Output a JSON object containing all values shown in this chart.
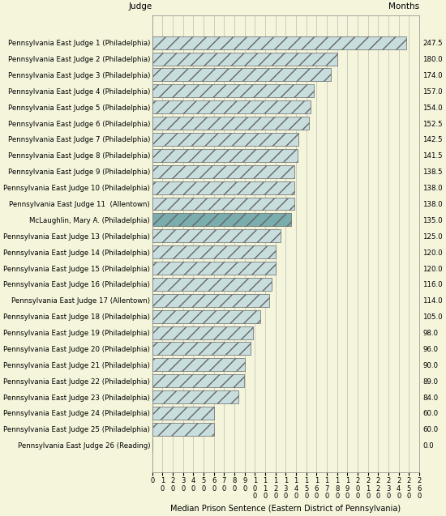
{
  "judges": [
    "Pennsylvania East Judge 1 (Philadelphia)",
    "Pennsylvania East Judge 2 (Philadelphia)",
    "Pennsylvania East Judge 3 (Philadelphia)",
    "Pennsylvania East Judge 4 (Philadelphia)",
    "Pennsylvania East Judge 5 (Philadelphia)",
    "Pennsylvania East Judge 6 (Philadelphia)",
    "Pennsylvania East Judge 7 (Philadelphia)",
    "Pennsylvania East Judge 8 (Philadelphia)",
    "Pennsylvania East Judge 9 (Philadelphia)",
    "Pennsylvania East Judge 10 (Philadelphia)",
    "Pennsylvania East Judge 11  (Allentown)",
    "McLaughlin, Mary A. (Philadelphia)",
    "Pennsylvania East Judge 13 (Philadelphia)",
    "Pennsylvania East Judge 14 (Philadelphia)",
    "Pennsylvania East Judge 15 (Philadelphia)",
    "Pennsylvania East Judge 16 (Philadelphia)",
    "Pennsylvania East Judge 17 (Allentown)",
    "Pennsylvania East Judge 18 (Philadelphia)",
    "Pennsylvania East Judge 19 (Philadelphia)",
    "Pennsylvania East Judge 20 (Philadelphia)",
    "Pennsylvania East Judge 21 (Philadelphia)",
    "Pennsylvania East Judge 22 (Philadelphia)",
    "Pennsylvania East Judge 23 (Philadelphia)",
    "Pennsylvania East Judge 24 (Philadelphia)",
    "Pennsylvania East Judge 25 (Philadelphia)",
    "Pennsylvania East Judge 26 (Reading)"
  ],
  "values": [
    247.5,
    180.0,
    174.0,
    157.0,
    154.0,
    152.5,
    142.5,
    141.5,
    138.5,
    138.0,
    138.0,
    135.0,
    125.0,
    120.0,
    120.0,
    116.0,
    114.0,
    105.0,
    98.0,
    96.0,
    90.0,
    89.0,
    84.0,
    60.0,
    60.0,
    0.0
  ],
  "bar_color_default": "#c8dede",
  "bar_color_special": "#7aadad",
  "special_index": 11,
  "background_color": "#f5f5dc",
  "title": "Judge",
  "months_label": "Months",
  "xlabel": "Median Prison Sentence (Eastern District of Pennsylvania)",
  "xlim": [
    0,
    260
  ],
  "xtick_values": [
    0,
    10,
    20,
    30,
    40,
    50,
    60,
    70,
    80,
    90,
    100,
    110,
    120,
    130,
    140,
    150,
    160,
    170,
    180,
    190,
    200,
    210,
    220,
    230,
    240,
    250,
    260
  ],
  "bar_edge_color": "#666666",
  "bar_linewidth": 0.5,
  "hatch": "//",
  "grid_color": "#bbbbbb"
}
